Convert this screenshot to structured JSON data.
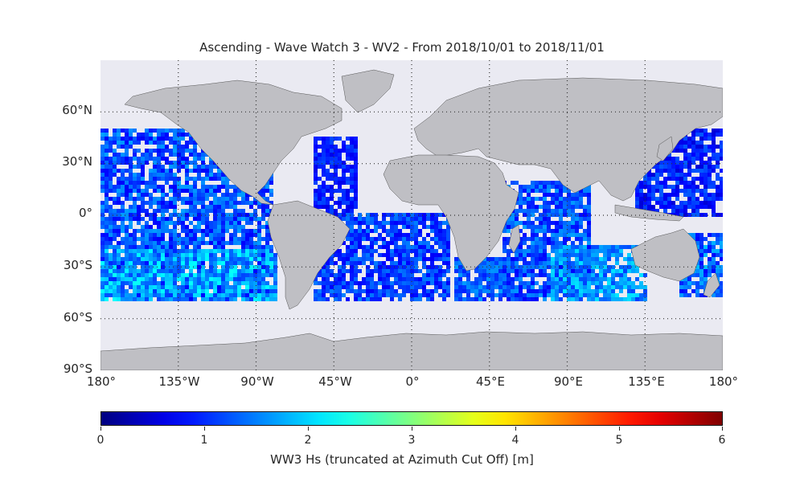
{
  "title": "Ascending - Wave Watch 3 - WV2 - From 2018/10/01 to 2018/11/01",
  "lat_labels": [
    "60°N",
    "30°N",
    "0°",
    "30°S",
    "60°S",
    "90°S"
  ],
  "lon_labels": [
    "180°",
    "135°W",
    "90°W",
    "45°W",
    "0°",
    "45°E",
    "90°E",
    "135°E",
    "180°"
  ],
  "colorbar": {
    "label": "WW3 Hs (truncated at Azimuth Cut Off) [m]",
    "ticks": [
      "0",
      "1",
      "2",
      "3",
      "4",
      "5",
      "6"
    ],
    "colormap": "jet",
    "range": [
      0,
      6
    ]
  },
  "colors": {
    "ocean": "#eaeaf2",
    "land": "#bfbfc4",
    "grid": "#333333"
  }
}
